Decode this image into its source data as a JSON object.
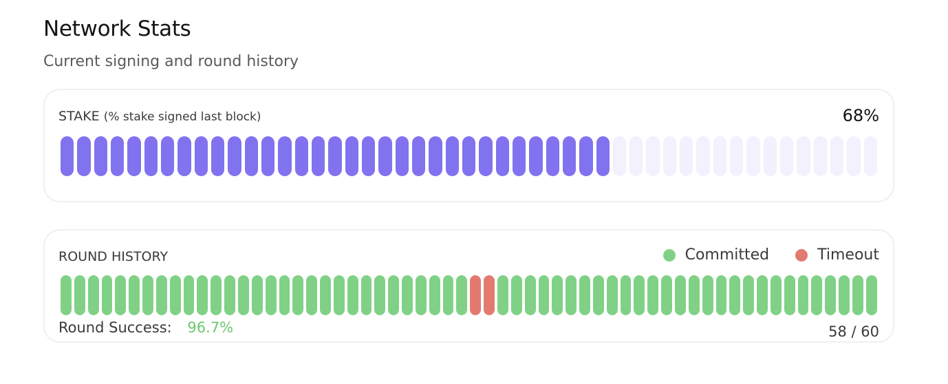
{
  "header": {
    "title": "Network Stats",
    "subtitle": "Current signing and round history"
  },
  "stake": {
    "label": "STAKE",
    "label_sub": "(% stake signed last block)",
    "value_text": "68%",
    "signed_fraction": 0.68,
    "total_segments": 49,
    "signed_segments": 33,
    "colors": {
      "signed": "#8173ef",
      "unsigned": "#f2f1fd"
    }
  },
  "rounds": {
    "label": "ROUND HISTORY",
    "legend": [
      {
        "name": "Committed",
        "color": "#80d186"
      },
      {
        "name": "Timeout",
        "color": "#e37a70"
      }
    ],
    "history": [
      "c",
      "c",
      "c",
      "c",
      "c",
      "c",
      "c",
      "c",
      "c",
      "c",
      "c",
      "c",
      "c",
      "c",
      "c",
      "c",
      "c",
      "c",
      "c",
      "c",
      "c",
      "c",
      "c",
      "c",
      "c",
      "c",
      "c",
      "c",
      "c",
      "c",
      "t",
      "t",
      "c",
      "c",
      "c",
      "c",
      "c",
      "c",
      "c",
      "c",
      "c",
      "c",
      "c",
      "c",
      "c",
      "c",
      "c",
      "c",
      "c",
      "c",
      "c",
      "c",
      "c",
      "c",
      "c",
      "c",
      "c",
      "c",
      "c",
      "c"
    ],
    "success_label": "Round Success:",
    "success_value": "96.7%",
    "success_color": "#6cc870",
    "count_text": "58 / 60"
  }
}
